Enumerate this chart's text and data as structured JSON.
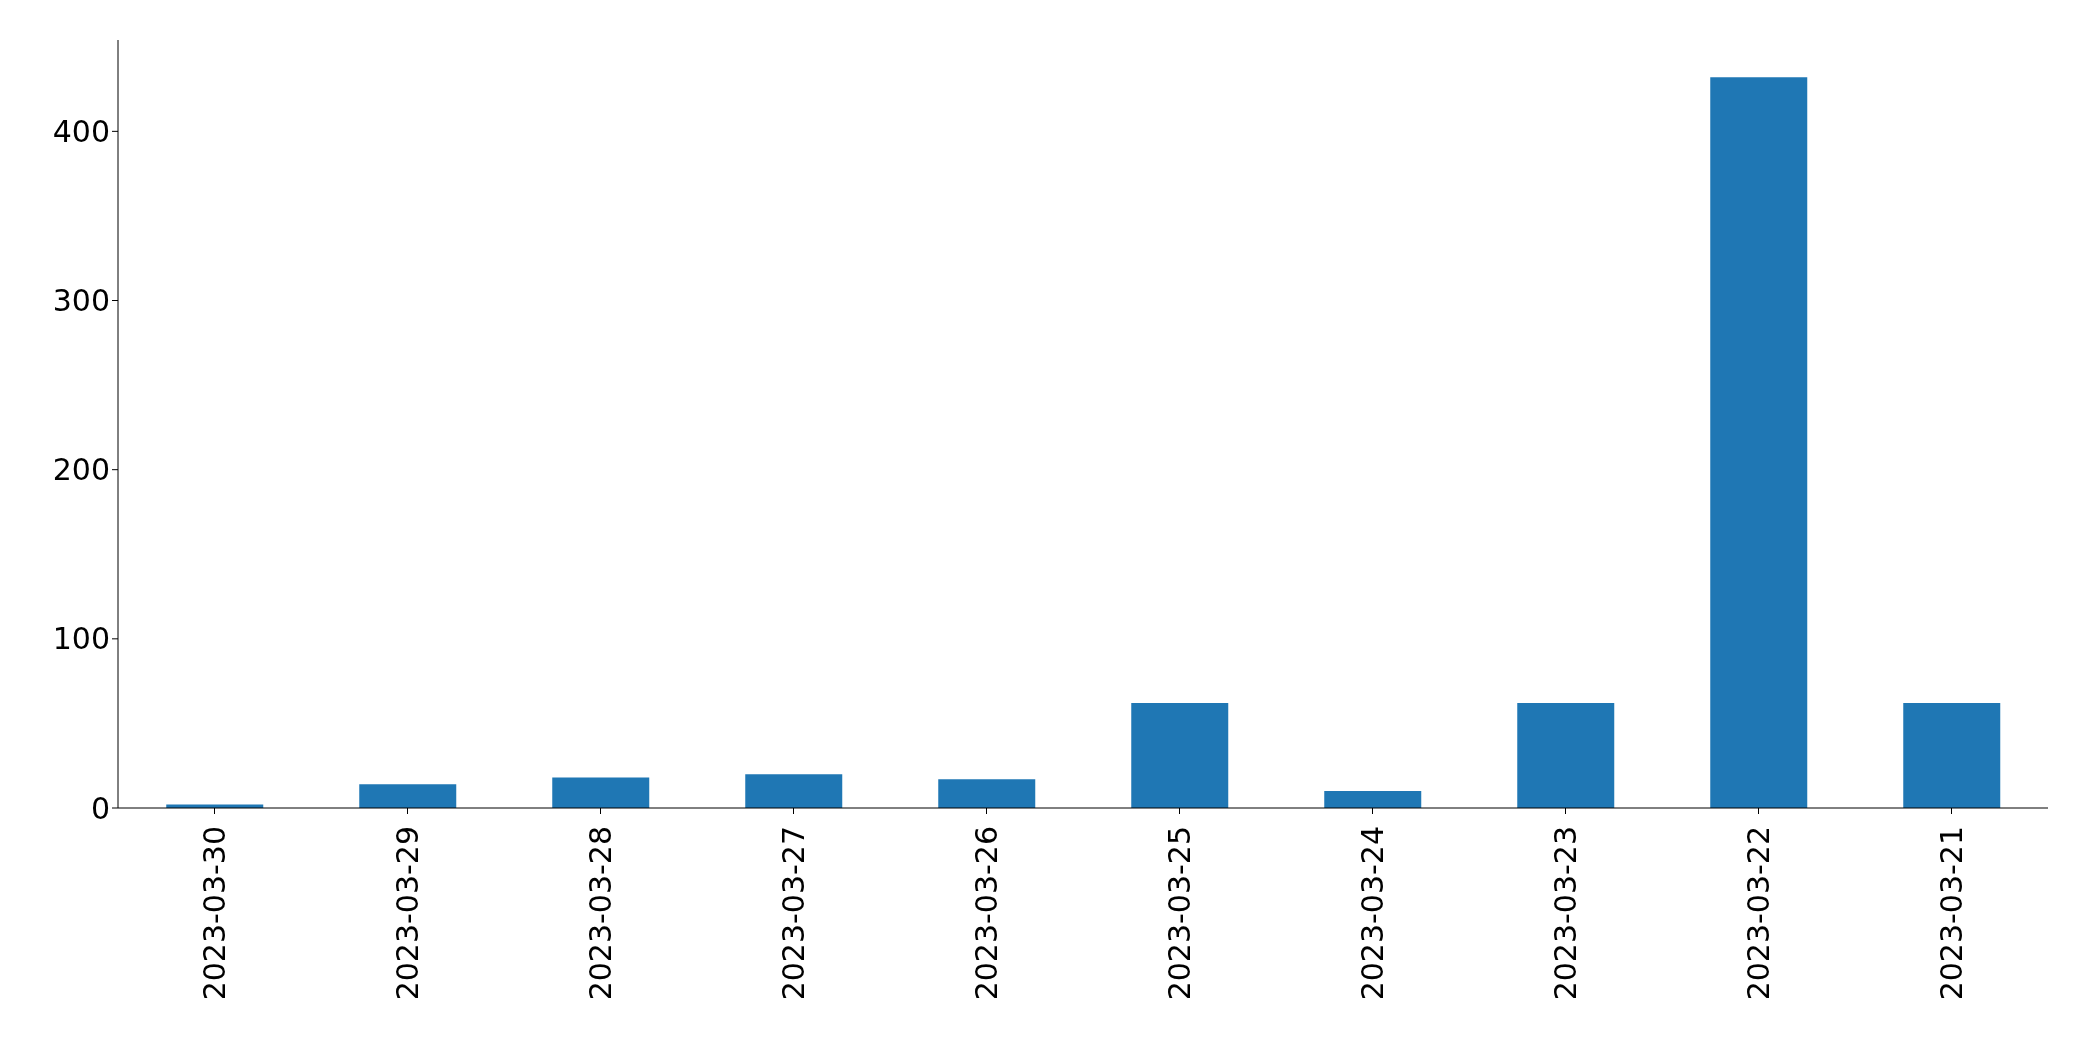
{
  "chart_data": {
    "type": "bar",
    "categories": [
      "2023-03-30",
      "2023-03-29",
      "2023-03-28",
      "2023-03-27",
      "2023-03-26",
      "2023-03-25",
      "2023-03-24",
      "2023-03-23",
      "2023-03-22",
      "2023-03-21"
    ],
    "values": [
      2,
      14,
      18,
      20,
      17,
      62,
      10,
      62,
      432,
      62
    ],
    "color": "#1f77b4",
    "ylim": [
      0,
      454
    ],
    "yticks": [
      0,
      100,
      200,
      300,
      400
    ],
    "grid": false,
    "legend": false
  }
}
